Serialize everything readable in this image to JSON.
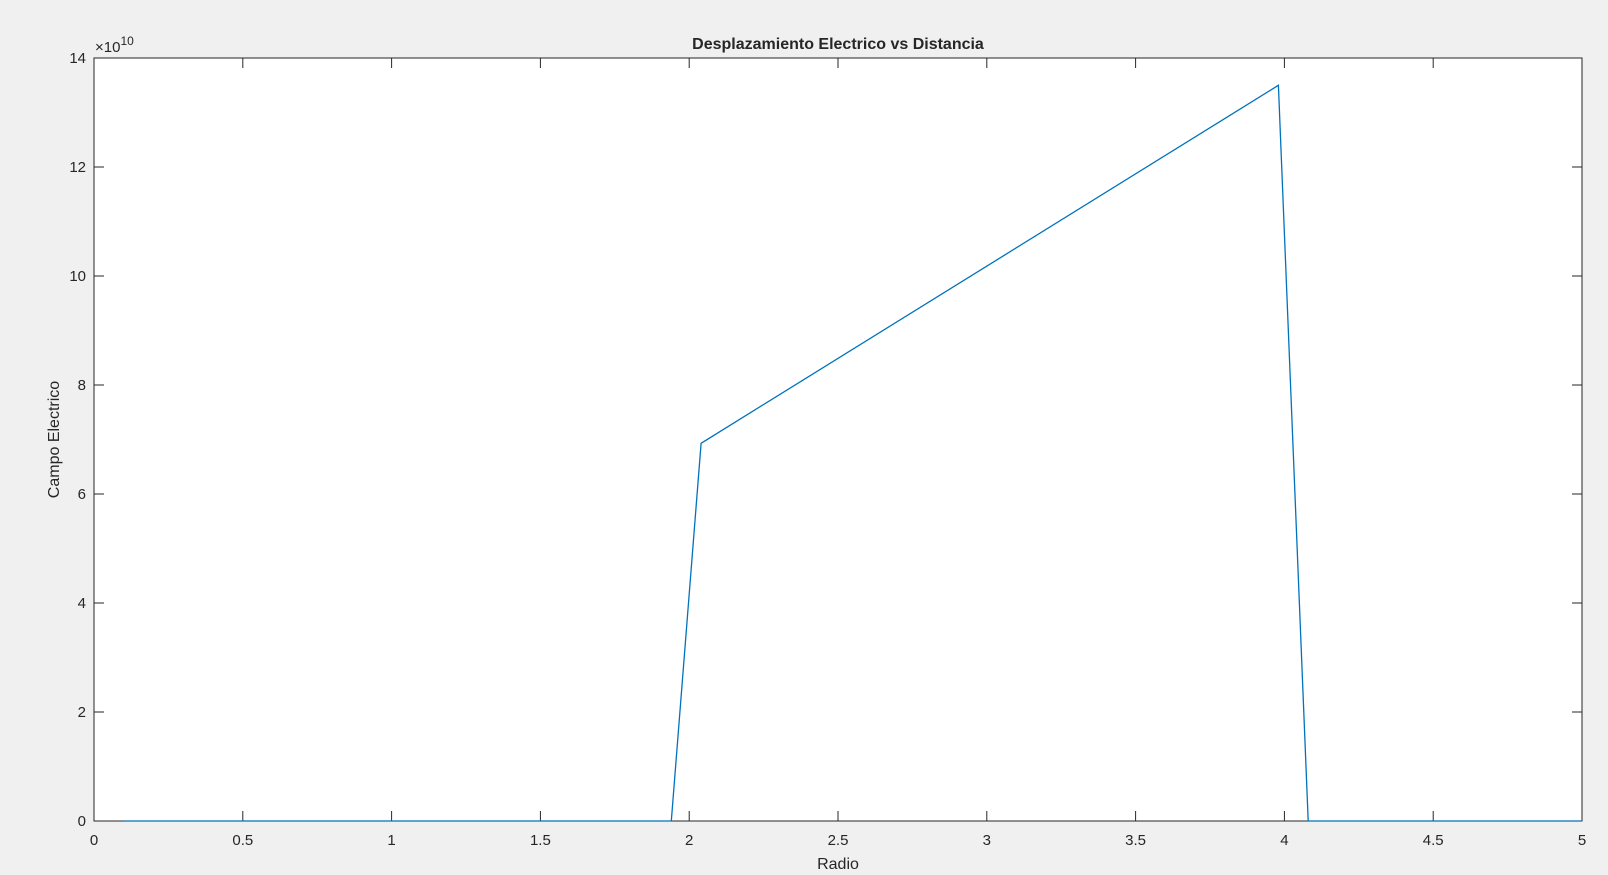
{
  "chart_data": {
    "type": "line",
    "title": "Desplazamiento Electrico vs Distancia",
    "xlabel": "Radio",
    "ylabel": "Campo Electrico",
    "xlim": [
      0,
      5
    ],
    "ylim": [
      0,
      14
    ],
    "y_exponent_label": "×10",
    "y_exponent_power": "10",
    "y_multiplier": 10000000000,
    "x_ticks": [
      0,
      0.5,
      1,
      1.5,
      2,
      2.5,
      3,
      3.5,
      4,
      4.5,
      5
    ],
    "x_tick_labels": [
      "0",
      "0.5",
      "1",
      "1.5",
      "2",
      "2.5",
      "3",
      "3.5",
      "4",
      "4.5",
      "5"
    ],
    "y_ticks": [
      0,
      2,
      4,
      6,
      8,
      10,
      12,
      14
    ],
    "y_tick_labels": [
      "0",
      "2",
      "4",
      "6",
      "8",
      "10",
      "12",
      "14"
    ],
    "grid": false,
    "colors": {
      "line": "#0072BD",
      "axes": "#262626",
      "background": "#ffffff",
      "figure": "#f0f0f0"
    },
    "series": [
      {
        "x": [
          0.1,
          1.94,
          2.04,
          3.98,
          4.08,
          5.0
        ],
        "y": [
          0,
          0,
          6.93,
          13.5,
          0,
          0
        ]
      }
    ]
  }
}
